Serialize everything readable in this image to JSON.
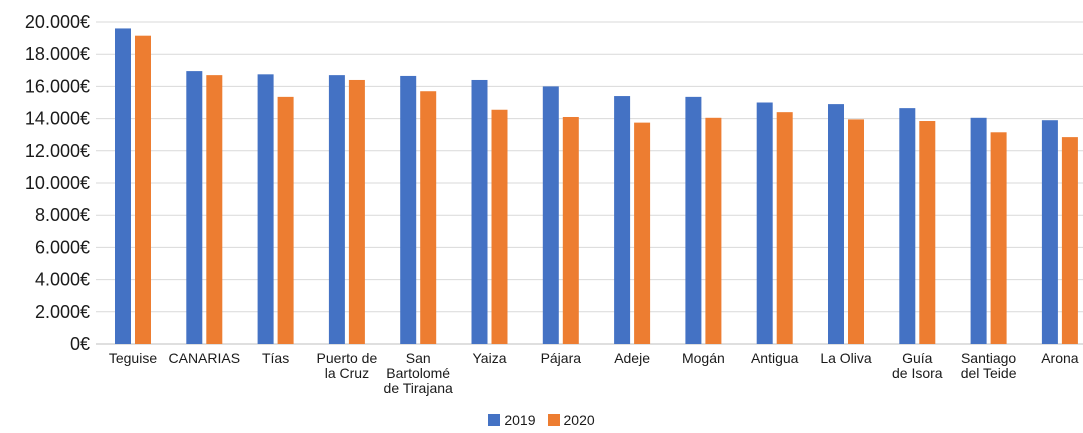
{
  "chart_data": {
    "type": "bar",
    "categories": [
      [
        "Teguise"
      ],
      [
        "CANARIAS"
      ],
      [
        "Tías"
      ],
      [
        "Puerto de",
        "la Cruz"
      ],
      [
        "San",
        "Bartolomé",
        "de Tirajana"
      ],
      [
        "Yaiza"
      ],
      [
        "Pájara"
      ],
      [
        "Adeje"
      ],
      [
        "Mogán"
      ],
      [
        "Antigua"
      ],
      [
        "La Oliva"
      ],
      [
        "Guía",
        "de Isora"
      ],
      [
        "Santiago",
        "del Teide"
      ],
      [
        "Arona"
      ]
    ],
    "series": [
      {
        "name": "2019",
        "color": "#4472C4",
        "values": [
          19600,
          16950,
          16750,
          16700,
          16650,
          16400,
          16000,
          15400,
          15350,
          15000,
          14900,
          14650,
          14050,
          13900
        ]
      },
      {
        "name": "2020",
        "color": "#ED7D31",
        "values": [
          19150,
          16700,
          15350,
          16400,
          15700,
          14550,
          14100,
          13750,
          14050,
          14400,
          13950,
          13850,
          13150,
          12850
        ]
      }
    ],
    "ylim": [
      0,
      20000
    ],
    "yticks": [
      "0€",
      "2.000€",
      "4.000€",
      "6.000€",
      "8.000€",
      "10.000€",
      "12.000€",
      "14.000€",
      "16.000€",
      "18.000€",
      "20.000€"
    ],
    "grid": true,
    "legend_position": "bottom"
  }
}
